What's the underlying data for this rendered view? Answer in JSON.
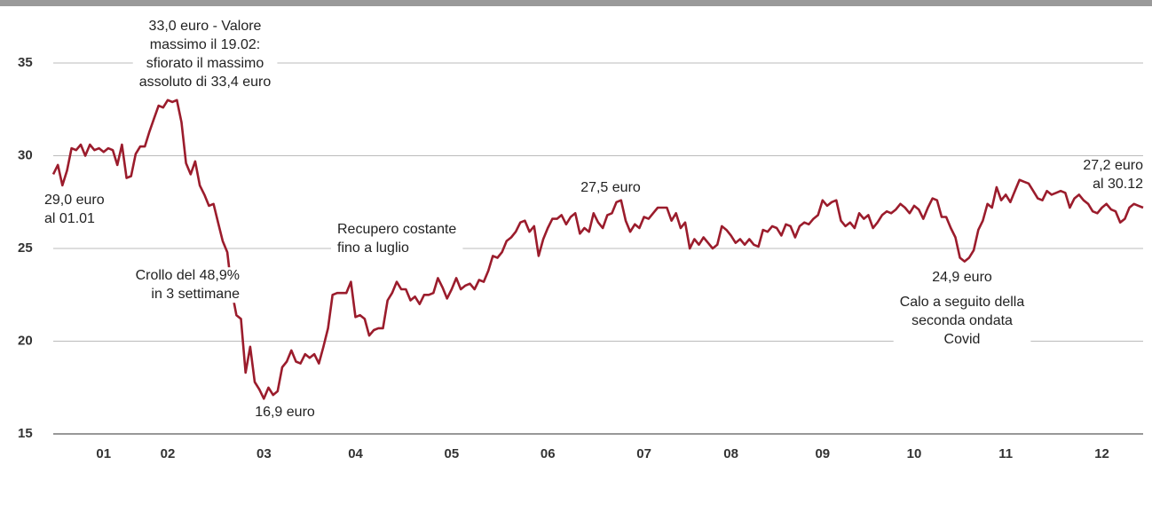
{
  "chart_data": {
    "type": "line",
    "categories": [
      null,
      null,
      null,
      null,
      null,
      null,
      null,
      null,
      null,
      null,
      null,
      "01",
      null,
      null,
      null,
      null,
      null,
      null,
      null,
      null,
      null,
      null,
      null,
      null,
      null,
      "02",
      null,
      null,
      null,
      null,
      null,
      null,
      null,
      null,
      null,
      null,
      null,
      null,
      null,
      null,
      null,
      null,
      null,
      null,
      null,
      null,
      "03",
      null,
      null,
      null,
      null,
      null,
      null,
      null,
      null,
      null,
      null,
      null,
      null,
      null,
      null,
      null,
      null,
      null,
      null,
      null,
      "04",
      null,
      null,
      null,
      null,
      null,
      null,
      null,
      null,
      null,
      null,
      null,
      null,
      null,
      null,
      null,
      null,
      null,
      null,
      null,
      null,
      "05",
      null,
      null,
      null,
      null,
      null,
      null,
      null,
      null,
      null,
      null,
      null,
      null,
      null,
      null,
      null,
      null,
      null,
      null,
      null,
      null,
      "06",
      null,
      null,
      null,
      null,
      null,
      null,
      null,
      null,
      null,
      null,
      null,
      null,
      null,
      null,
      null,
      null,
      null,
      null,
      null,
      null,
      "07",
      null,
      null,
      null,
      null,
      null,
      null,
      null,
      null,
      null,
      null,
      null,
      null,
      null,
      null,
      null,
      null,
      null,
      null,
      "08",
      null,
      null,
      null,
      null,
      null,
      null,
      null,
      null,
      null,
      null,
      null,
      null,
      null,
      null,
      null,
      null,
      null,
      null,
      null,
      "09",
      null,
      null,
      null,
      null,
      null,
      null,
      null,
      null,
      null,
      null,
      null,
      null,
      null,
      null,
      null,
      null,
      null,
      null,
      null,
      "10",
      null,
      null,
      null,
      null,
      null,
      null,
      null,
      null,
      null,
      null,
      null,
      null,
      null,
      null,
      null,
      null,
      null,
      null,
      null,
      "11",
      null,
      null,
      null,
      null,
      null,
      null,
      null,
      null,
      null,
      null,
      null,
      null,
      null,
      null,
      null,
      null,
      null,
      null,
      null,
      null,
      "12",
      null,
      null,
      null,
      null,
      null,
      null,
      null,
      null,
      null
    ],
    "series": [
      {
        "color": "#9b1c2c",
        "values": [
          29.0,
          29.5,
          28.4,
          29.2,
          30.4,
          30.3,
          30.6,
          30.0,
          30.6,
          30.3,
          30.4,
          30.2,
          30.4,
          30.3,
          29.5,
          30.6,
          28.8,
          28.9,
          30.1,
          30.5,
          30.5,
          31.3,
          32.0,
          32.7,
          32.6,
          33.0,
          32.9,
          33.0,
          31.8,
          29.6,
          29.0,
          29.7,
          28.4,
          27.9,
          27.3,
          27.4,
          26.4,
          25.4,
          24.8,
          22.7,
          21.4,
          21.2,
          18.3,
          19.7,
          17.8,
          17.4,
          16.9,
          17.5,
          17.1,
          17.3,
          18.6,
          18.9,
          19.5,
          18.9,
          18.8,
          19.3,
          19.1,
          19.3,
          18.8,
          19.7,
          20.7,
          22.5,
          22.6,
          22.6,
          22.6,
          23.2,
          21.3,
          21.4,
          21.2,
          20.3,
          20.6,
          20.7,
          20.7,
          22.2,
          22.6,
          23.2,
          22.8,
          22.8,
          22.2,
          22.4,
          22.0,
          22.5,
          22.5,
          22.6,
          23.4,
          22.9,
          22.3,
          22.8,
          23.4,
          22.8,
          23.0,
          23.1,
          22.8,
          23.3,
          23.2,
          23.8,
          24.6,
          24.5,
          24.8,
          25.4,
          25.6,
          25.9,
          26.4,
          26.5,
          25.9,
          26.2,
          24.6,
          25.5,
          26.1,
          26.6,
          26.6,
          26.8,
          26.3,
          26.7,
          26.9,
          25.8,
          26.1,
          25.9,
          26.9,
          26.4,
          26.1,
          26.8,
          26.9,
          27.5,
          27.6,
          26.5,
          25.9,
          26.3,
          26.1,
          26.7,
          26.6,
          26.9,
          27.2,
          27.2,
          27.2,
          26.5,
          26.9,
          26.1,
          26.4,
          25.0,
          25.5,
          25.2,
          25.6,
          25.3,
          25.0,
          25.2,
          26.2,
          26.0,
          25.7,
          25.3,
          25.5,
          25.2,
          25.5,
          25.2,
          25.1,
          26.0,
          25.9,
          26.2,
          26.1,
          25.7,
          26.3,
          26.2,
          25.6,
          26.2,
          26.4,
          26.3,
          26.6,
          26.8,
          27.6,
          27.3,
          27.5,
          27.6,
          26.5,
          26.2,
          26.4,
          26.1,
          26.9,
          26.6,
          26.8,
          26.1,
          26.4,
          26.8,
          27.0,
          26.9,
          27.1,
          27.4,
          27.2,
          26.9,
          27.3,
          27.1,
          26.6,
          27.2,
          27.7,
          27.6,
          26.7,
          26.7,
          26.1,
          25.6,
          24.5,
          24.3,
          24.5,
          24.9,
          26.0,
          26.5,
          27.4,
          27.2,
          28.3,
          27.6,
          27.9,
          27.5,
          28.1,
          28.7,
          28.6,
          28.5,
          28.1,
          27.7,
          27.6,
          28.1,
          27.9,
          28.0,
          28.1,
          28.0,
          27.2,
          27.7,
          27.9,
          27.6,
          27.4,
          27.0,
          26.9,
          27.2,
          27.4,
          27.1,
          27.0,
          26.4,
          26.6,
          27.2,
          27.4,
          27.3,
          27.2
        ]
      }
    ],
    "ylim": [
      15,
      35
    ],
    "yticks": [
      15,
      20,
      25,
      30,
      35
    ],
    "grid": true,
    "annotations": [
      [
        "33,0 euro - Valore",
        "massimo il 19.02:",
        "sfiorato il massimo",
        "assoluto di 33,4 euro"
      ],
      [
        "29,0 euro",
        "al 01.01"
      ],
      [
        "Crollo del 48,9%",
        "in 3 settimane"
      ],
      [
        "16,9 euro"
      ],
      [
        "Recupero costante",
        "fino a luglio"
      ],
      [
        "27,5 euro"
      ],
      [
        "24,9 euro"
      ],
      [
        "Calo a seguito della",
        "seconda ondata",
        "Covid"
      ],
      [
        "27,2 euro",
        "al 30.12"
      ]
    ]
  }
}
